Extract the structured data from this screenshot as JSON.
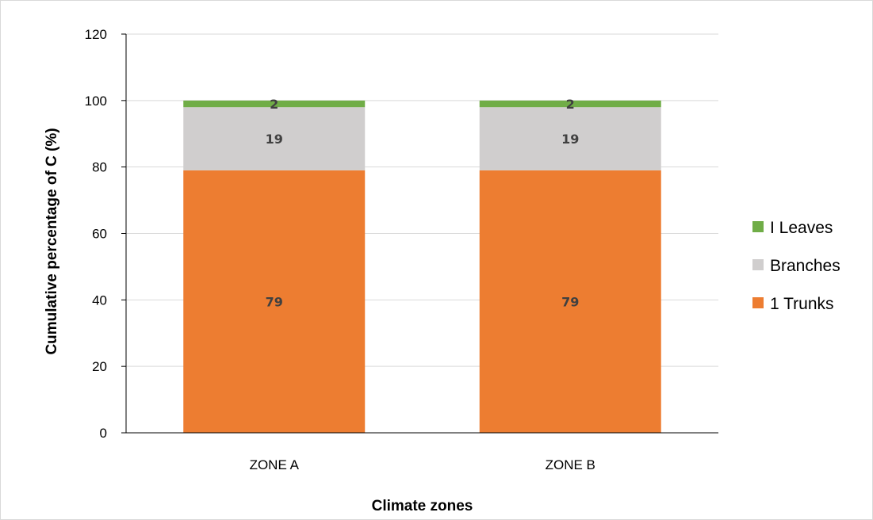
{
  "chart_data": {
    "type": "bar",
    "stacked": true,
    "categories": [
      "ZONE A",
      "ZONE B"
    ],
    "series": [
      {
        "name": "Trunks",
        "legend_label": "1  Trunks",
        "values": [
          79,
          79
        ],
        "color": "#ed7d31"
      },
      {
        "name": "Branches",
        "legend_label": "Branches",
        "values": [
          19,
          19
        ],
        "color": "#d0cece"
      },
      {
        "name": "Leaves",
        "legend_label": "I  Leaves",
        "values": [
          2,
          2
        ],
        "color": "#70ad47"
      }
    ],
    "title": "",
    "xlabel": "Climate zones",
    "ylabel": "Cumulative percentage of C (%)",
    "ylim": [
      0,
      120
    ],
    "yticks": [
      0,
      20,
      40,
      60,
      80,
      100,
      120
    ],
    "grid": true,
    "legend_position": "right"
  }
}
